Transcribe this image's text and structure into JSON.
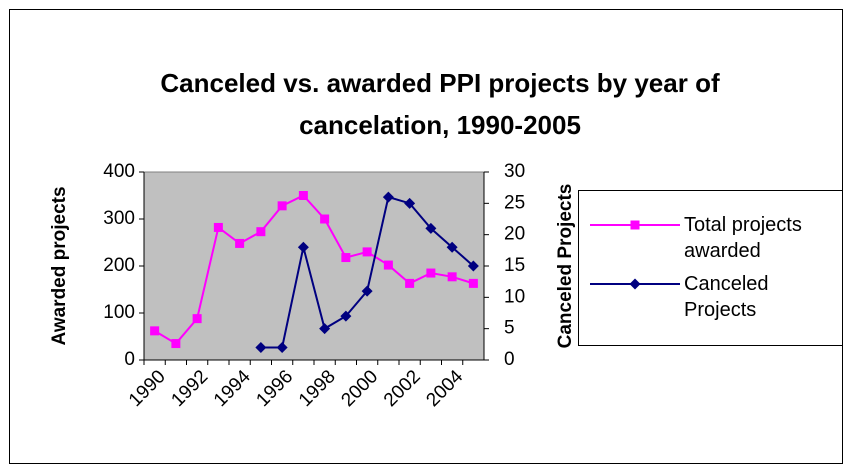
{
  "chart_data": {
    "type": "line",
    "title": "Canceled vs. awarded PPI projects by year of cancelation, 1990-2005",
    "y_label": "Awarded projects",
    "y2_label": "Canceled Projects",
    "categories": [
      "1990",
      null,
      "1992",
      null,
      "1994",
      null,
      "1996",
      null,
      "1998",
      null,
      "2000",
      null,
      "2002",
      null,
      "2004",
      null
    ],
    "series": [
      {
        "name": "Total projects awarded",
        "color": "#ff00ff",
        "marker": "square",
        "values": [
          62,
          35,
          88,
          282,
          248,
          273,
          328,
          350,
          300,
          218,
          230,
          202,
          163,
          185,
          177,
          163
        ]
      },
      {
        "name": "Canceled Projects",
        "color": "#000080",
        "marker": "diamond",
        "axis": "y2",
        "values": [
          null,
          null,
          null,
          null,
          null,
          2,
          2,
          18,
          5,
          7,
          11,
          26,
          25,
          21,
          18,
          15
        ]
      }
    ],
    "ylim": [
      0,
      400
    ],
    "yticks": [
      0,
      100,
      200,
      300,
      400
    ],
    "y2lim": [
      0,
      30
    ],
    "y2ticks": [
      0,
      5,
      10,
      15,
      20,
      25,
      30
    ],
    "legend": "right",
    "plot_background": "#c0c0c0"
  }
}
